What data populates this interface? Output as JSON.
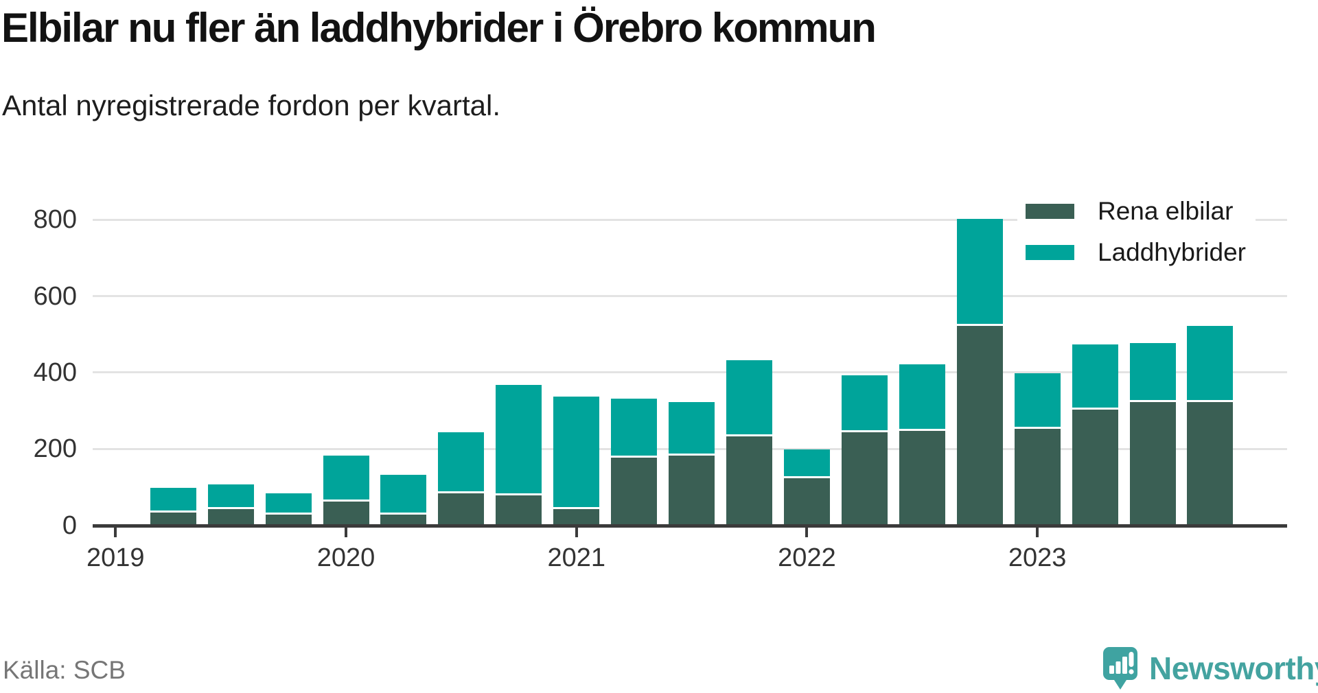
{
  "header": {
    "title": "Elbilar nu fler än laddhybrider i Örebro kommun",
    "subtitle": "Antal nyregistrerade fordon per kvartal."
  },
  "source": {
    "label": "Källa: SCB"
  },
  "branding": {
    "name": "Newsworthy",
    "logo_icon": "bar-chart-speech-bubble-icon"
  },
  "colors": {
    "elbilar": "#3a5f54",
    "laddhybrider": "#00a49a",
    "axis": "#3b3b3b",
    "grid": "#e3e3e3",
    "tick_label": "#333333",
    "title_text": "#121212",
    "source_text": "#767676",
    "brand": "#44a3a0"
  },
  "legend": {
    "items": [
      {
        "label": "Rena elbilar",
        "color_key": "elbilar"
      },
      {
        "label": "Laddhybrider",
        "color_key": "laddhybrider"
      }
    ]
  },
  "chart_data": {
    "type": "bar",
    "stacked": true,
    "title": "Elbilar nu fler än laddhybrider i Örebro kommun",
    "subtitle": "Antal nyregistrerade fordon per kvartal.",
    "xlabel": "",
    "ylabel": "",
    "x": [
      "2019 K2",
      "2019 K3",
      "2019 K4",
      "2020 K1",
      "2020 K2",
      "2020 K3",
      "2020 K4",
      "2021 K1",
      "2021 K2",
      "2021 K3",
      "2021 K4",
      "2022 K1",
      "2022 K2",
      "2022 K3",
      "2022 K4",
      "2023 K1",
      "2023 K2",
      "2023 K3",
      "2023 K4"
    ],
    "series": [
      {
        "name": "Rena elbilar",
        "values": [
          30,
          40,
          25,
          60,
          25,
          80,
          75,
          40,
          175,
          180,
          230,
          120,
          240,
          245,
          520,
          250,
          300,
          320,
          320
        ]
      },
      {
        "name": "Laddhybrider",
        "values": [
          65,
          65,
          55,
          120,
          105,
          160,
          290,
          295,
          155,
          140,
          200,
          75,
          150,
          175,
          280,
          145,
          170,
          155,
          200
        ]
      }
    ],
    "totals": [
      95,
      105,
      80,
      180,
      130,
      240,
      365,
      335,
      330,
      320,
      430,
      195,
      390,
      420,
      800,
      395,
      470,
      475,
      520
    ],
    "x_tick_labels": [
      "2019",
      "2020",
      "2021",
      "2022",
      "2023"
    ],
    "y_ticks": [
      0,
      200,
      400,
      600,
      800
    ],
    "ylim": [
      0,
      820
    ],
    "grid": "horizontal",
    "legend_position": "top-right"
  }
}
